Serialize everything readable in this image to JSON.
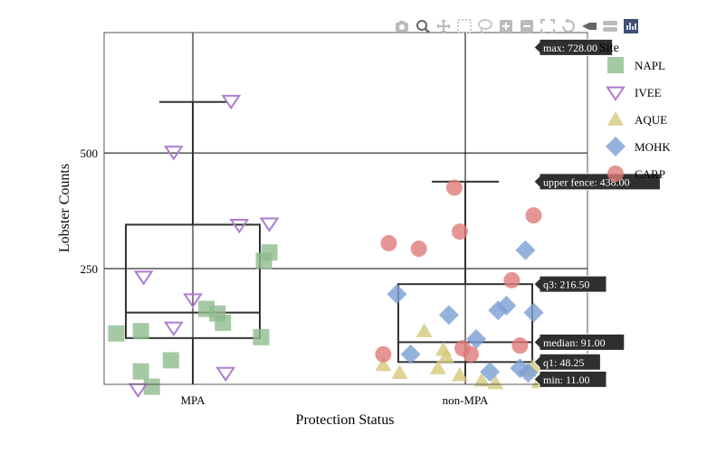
{
  "toolbar": {
    "buttons": [
      {
        "name": "camera-icon"
      },
      {
        "name": "zoom-icon"
      },
      {
        "name": "pan-icon"
      },
      {
        "name": "box-select-icon"
      },
      {
        "name": "lasso-icon"
      },
      {
        "name": "zoom-in-icon"
      },
      {
        "name": "zoom-out-icon"
      },
      {
        "name": "autoscale-icon"
      },
      {
        "name": "reset-axes-icon"
      },
      {
        "name": "spike-lines-icon"
      },
      {
        "name": "compare-hover-icon"
      },
      {
        "name": "plotly-logo-icon"
      }
    ]
  },
  "chart_data": {
    "type": "box",
    "title": "",
    "xlabel": "Protection Status",
    "ylabel": "Lobster Counts",
    "categories": [
      "MPA",
      "non-MPA"
    ],
    "ylim": [
      0,
      760
    ],
    "yticks": [
      250,
      500
    ],
    "grid": true,
    "legend_title": "Site",
    "legend_position": "top-right",
    "boxes": [
      {
        "category": "MPA",
        "min": 0,
        "q1": 100,
        "median": 155,
        "q3": 345,
        "upper_fence": 610
      },
      {
        "category": "non-MPA",
        "min": 11.0,
        "q1": 48.25,
        "median": 91.0,
        "q3": 216.5,
        "upper_fence": 438.0,
        "max": 728.0
      }
    ],
    "hover_labels": [
      {
        "text": "max: 728.00",
        "value": 728.0
      },
      {
        "text": "upper fence: 438.00",
        "value": 438.0
      },
      {
        "text": "q3: 216.50",
        "value": 216.5
      },
      {
        "text": "median: 91.00",
        "value": 91.0
      },
      {
        "text": "q1: 48.25",
        "value": 48.25
      },
      {
        "text": "min: 11.00",
        "value": 11.0
      }
    ],
    "series": [
      {
        "name": "NAPL",
        "symbol": "square",
        "color": "#8fbc8f",
        "points": [
          [
            "MPA",
            -0.28,
            110
          ],
          [
            "MPA",
            -0.19,
            115
          ],
          [
            "MPA",
            -0.19,
            28
          ],
          [
            "MPA",
            -0.15,
            -5
          ],
          [
            "MPA",
            -0.08,
            52
          ],
          [
            "MPA",
            0.05,
            163
          ],
          [
            "MPA",
            0.09,
            153
          ],
          [
            "MPA",
            0.11,
            133
          ],
          [
            "MPA",
            0.25,
            102
          ],
          [
            "MPA",
            0.26,
            267
          ],
          [
            "MPA",
            0.28,
            285
          ]
        ]
      },
      {
        "name": "IVEE",
        "symbol": "triangle-down",
        "color": "#b07ccf",
        "points": [
          [
            "MPA",
            -0.2,
            -10
          ],
          [
            "MPA",
            -0.18,
            233
          ],
          [
            "MPA",
            -0.07,
            503
          ],
          [
            "MPA",
            -0.07,
            123
          ],
          [
            "MPA",
            0.0,
            184
          ],
          [
            "MPA",
            0.12,
            25
          ],
          [
            "MPA",
            0.14,
            613
          ],
          [
            "MPA",
            0.17,
            345
          ],
          [
            "MPA",
            0.28,
            348
          ]
        ]
      },
      {
        "name": "AQUE",
        "symbol": "triangle-up",
        "color": "#d4c87a",
        "points": [
          [
            "non-MPA",
            -0.3,
            42
          ],
          [
            "non-MPA",
            -0.24,
            25
          ],
          [
            "non-MPA",
            -0.15,
            115
          ],
          [
            "non-MPA",
            -0.1,
            35
          ],
          [
            "non-MPA",
            -0.08,
            75
          ],
          [
            "non-MPA",
            -0.07,
            60
          ],
          [
            "non-MPA",
            -0.02,
            20
          ],
          [
            "non-MPA",
            0.06,
            8
          ],
          [
            "non-MPA",
            0.11,
            3
          ],
          [
            "non-MPA",
            0.23,
            30
          ],
          [
            "non-MPA",
            0.25,
            40
          ],
          [
            "non-MPA",
            0.27,
            5
          ]
        ]
      },
      {
        "name": "MOHK",
        "symbol": "diamond",
        "color": "#7a9fd4",
        "points": [
          [
            "non-MPA",
            -0.25,
            195
          ],
          [
            "non-MPA",
            -0.2,
            65
          ],
          [
            "non-MPA",
            -0.06,
            150
          ],
          [
            "non-MPA",
            0.04,
            98
          ],
          [
            "non-MPA",
            0.09,
            27
          ],
          [
            "non-MPA",
            0.12,
            160
          ],
          [
            "non-MPA",
            0.15,
            170
          ],
          [
            "non-MPA",
            0.2,
            35
          ],
          [
            "non-MPA",
            0.22,
            290
          ],
          [
            "non-MPA",
            0.23,
            25
          ],
          [
            "non-MPA",
            0.25,
            155
          ]
        ]
      },
      {
        "name": "CARP",
        "symbol": "circle",
        "color": "#e07a7a",
        "points": [
          [
            "non-MPA",
            -0.3,
            65
          ],
          [
            "non-MPA",
            -0.28,
            305
          ],
          [
            "non-MPA",
            -0.17,
            293
          ],
          [
            "non-MPA",
            -0.04,
            425
          ],
          [
            "non-MPA",
            -0.02,
            330
          ],
          [
            "non-MPA",
            -0.01,
            78
          ],
          [
            "non-MPA",
            0.02,
            65
          ],
          [
            "non-MPA",
            0.17,
            225
          ],
          [
            "non-MPA",
            0.2,
            84
          ],
          [
            "non-MPA",
            0.25,
            365
          ]
        ]
      }
    ]
  }
}
